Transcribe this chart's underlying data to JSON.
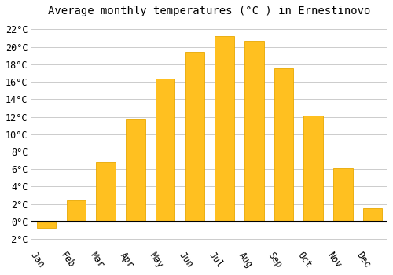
{
  "title": "Average monthly temperatures (°C ) in Ernestinovo",
  "months": [
    "Jan",
    "Feb",
    "Mar",
    "Apr",
    "May",
    "Jun",
    "Jul",
    "Aug",
    "Sep",
    "Oct",
    "Nov",
    "Dec"
  ],
  "values": [
    -0.7,
    2.4,
    6.8,
    11.7,
    16.4,
    19.4,
    21.2,
    20.7,
    17.5,
    12.1,
    6.1,
    1.5
  ],
  "bar_color": "#FFC020",
  "bar_edge_color": "#E8A800",
  "background_color": "#FFFFFF",
  "plot_bg_color": "#FFFFFF",
  "grid_color": "#CCCCCC",
  "ylim": [
    -3,
    23
  ],
  "yticks": [
    -2,
    0,
    2,
    4,
    6,
    8,
    10,
    12,
    14,
    16,
    18,
    20,
    22
  ],
  "zero_line_color": "#000000",
  "title_fontsize": 10,
  "tick_fontsize": 8.5,
  "font_family": "monospace",
  "bar_width": 0.65,
  "xlabel_rotation": -55
}
